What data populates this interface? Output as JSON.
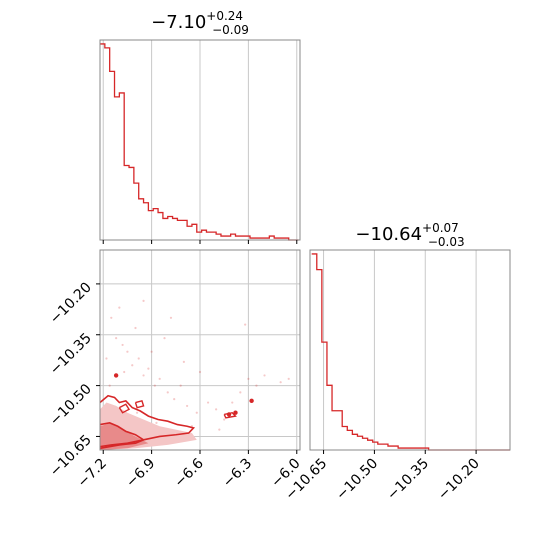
{
  "colors": {
    "accent": "#d62728",
    "grid": "#c8c8c8",
    "frame": "#888888"
  },
  "chart_data": [
    {
      "type": "histogram",
      "parameter_index": 0,
      "title": {
        "main": "−7.10",
        "upper": "+0.24",
        "lower": "−0.09"
      },
      "xlim": [
        -7.22,
        -5.98
      ],
      "x_ticks": [
        -7.2,
        -6.9,
        -6.6,
        -6.3,
        -6.0
      ],
      "bin_edges": [
        -7.22,
        -7.19,
        -7.16,
        -7.13,
        -7.1,
        -7.07,
        -7.04,
        -7.01,
        -6.98,
        -6.95,
        -6.92,
        -6.89,
        -6.86,
        -6.83,
        -6.8,
        -6.77,
        -6.74,
        -6.71,
        -6.68,
        -6.65,
        -6.62,
        -6.59,
        -6.56,
        -6.53,
        -6.5,
        -6.47,
        -6.44,
        -6.41,
        -6.38,
        -6.35,
        -6.32,
        -6.29,
        -6.26,
        -6.23,
        -6.2,
        -6.17,
        -6.14,
        -6.11,
        -6.08,
        -6.05,
        -6.02,
        -5.99
      ],
      "values": [
        100,
        98,
        86,
        73,
        75,
        38,
        37,
        29,
        21,
        19,
        15,
        16,
        14,
        11,
        12,
        11,
        10,
        10,
        7,
        8,
        4,
        5,
        4,
        4,
        3,
        2,
        2,
        3,
        2,
        2,
        2,
        1,
        1,
        1,
        1,
        2,
        1,
        1,
        1,
        0,
        0
      ],
      "ylim": [
        0,
        102
      ]
    },
    {
      "type": "histogram",
      "parameter_index": 1,
      "title": {
        "main": "−10.64",
        "upper": "+0.07",
        "lower": "−0.03"
      },
      "xlim": [
        -10.69,
        -10.1
      ],
      "x_ticks": [
        -10.65,
        -10.5,
        -10.35,
        -10.2
      ],
      "x_tick_labels": [
        "−10.65",
        "−10.50",
        "−10.35",
        "−10.20"
      ],
      "bin_edges": [
        -10.685,
        -10.67,
        -10.655,
        -10.64,
        -10.625,
        -10.61,
        -10.595,
        -10.58,
        -10.565,
        -10.55,
        -10.535,
        -10.52,
        -10.505,
        -10.49,
        -10.475,
        -10.46,
        -10.445,
        -10.43,
        -10.415,
        -10.4,
        -10.385,
        -10.37,
        -10.355,
        -10.34,
        -10.325,
        -10.31,
        -10.295,
        -10.28,
        -10.265,
        -10.25,
        -10.235,
        -10.22,
        -10.205,
        -10.19,
        -10.175,
        -10.16,
        -10.145,
        -10.13,
        -10.115,
        -10.1
      ],
      "values": [
        100,
        92,
        55,
        33,
        20,
        20,
        12,
        10,
        8,
        7,
        6,
        5,
        4,
        3,
        3,
        2,
        2,
        1,
        1,
        1,
        1,
        1,
        1,
        0,
        0,
        0,
        0,
        0,
        0,
        0,
        0,
        0,
        0,
        0,
        0,
        0,
        0,
        0,
        0
      ],
      "ylim": [
        0,
        102
      ]
    },
    {
      "type": "scatter",
      "parameter_index": [
        0,
        1
      ],
      "xlim": [
        -7.22,
        -5.98
      ],
      "ylim": [
        -10.69,
        -10.1
      ],
      "x_ticks": [
        -7.2,
        -6.9,
        -6.6,
        -6.3,
        -6.0
      ],
      "x_tick_labels": [
        "−7.2",
        "−6.9",
        "−6.6",
        "−6.3",
        "−6.0"
      ],
      "y_ticks": [
        -10.2,
        -10.35,
        -10.5,
        -10.65
      ],
      "y_tick_labels": [
        "−10.20",
        "−10.35",
        "−10.50",
        "−10.65"
      ],
      "points": [
        [
          -7.15,
          -10.3
        ],
        [
          -7.12,
          -10.36
        ],
        [
          -7.08,
          -10.38
        ],
        [
          -7.05,
          -10.4
        ],
        [
          -7.02,
          -10.44
        ],
        [
          -6.98,
          -10.42
        ],
        [
          -6.95,
          -10.47
        ],
        [
          -6.92,
          -10.45
        ],
        [
          -6.88,
          -10.5
        ],
        [
          -6.85,
          -10.48
        ],
        [
          -6.8,
          -10.52
        ],
        [
          -6.76,
          -10.54
        ],
        [
          -6.72,
          -10.5
        ],
        [
          -6.68,
          -10.56
        ],
        [
          -6.62,
          -10.58
        ],
        [
          -6.55,
          -10.55
        ],
        [
          -6.5,
          -10.57
        ],
        [
          -6.45,
          -10.6
        ],
        [
          -6.4,
          -10.55
        ],
        [
          -6.35,
          -10.52
        ],
        [
          -6.3,
          -10.48
        ],
        [
          -6.25,
          -10.5
        ],
        [
          -6.2,
          -10.47
        ],
        [
          -6.1,
          -10.49
        ],
        [
          -6.05,
          -10.48
        ],
        [
          -7.18,
          -10.42
        ],
        [
          -7.1,
          -10.27
        ],
        [
          -7.0,
          -10.33
        ],
        [
          -6.9,
          -10.4
        ],
        [
          -6.82,
          -10.36
        ],
        [
          -6.7,
          -10.43
        ],
        [
          -6.6,
          -10.46
        ],
        [
          -6.95,
          -10.25
        ],
        [
          -6.32,
          -10.32
        ],
        [
          -6.78,
          -10.3
        ],
        [
          -7.05,
          -10.55
        ],
        [
          -6.99,
          -10.58
        ],
        [
          -6.87,
          -10.61
        ],
        [
          -6.65,
          -10.62
        ],
        [
          -6.48,
          -10.63
        ],
        [
          -7.16,
          -10.5
        ],
        [
          -7.07,
          -10.46
        ]
      ],
      "dense_points": [
        [
          -7.12,
          -10.47
        ],
        [
          -6.42,
          -10.585
        ],
        [
          -6.28,
          -10.545
        ],
        [
          -6.38,
          -10.58
        ]
      ]
    }
  ]
}
